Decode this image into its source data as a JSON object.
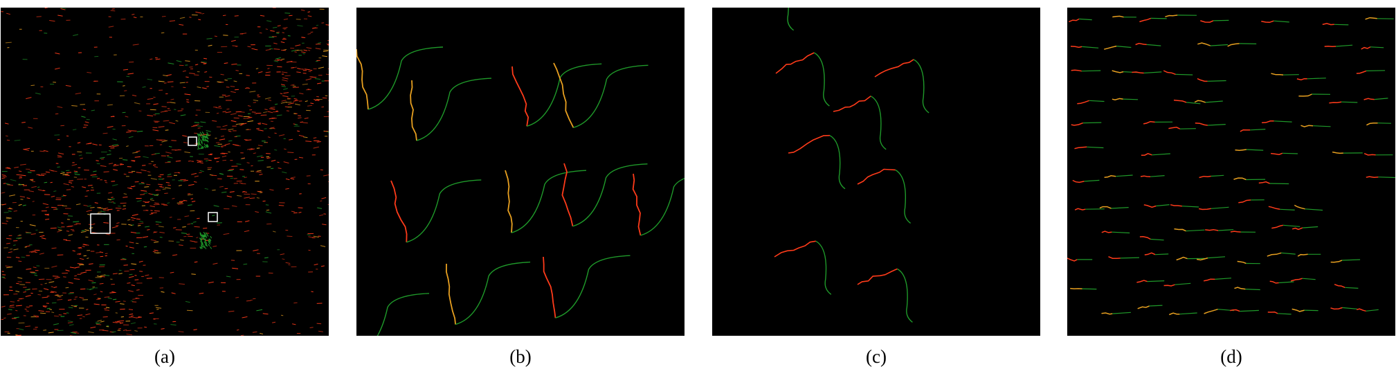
{
  "figure": {
    "panels": [
      {
        "id": "a",
        "caption": "(a)",
        "content": "overview"
      },
      {
        "id": "b",
        "caption": "(b)",
        "content": "zoom-large-glyphs"
      },
      {
        "id": "c",
        "caption": "(c)",
        "content": "zoom-medium-glyphs"
      },
      {
        "id": "d",
        "caption": "(d)",
        "content": "zoom-small-glyphs"
      }
    ]
  },
  "colors": {
    "background": "#000000",
    "glyph_head": "#ff3b1a",
    "glyph_mid": "#e8a020",
    "glyph_tail": "#1f9a2a",
    "highlight_box": "#ffffff"
  }
}
